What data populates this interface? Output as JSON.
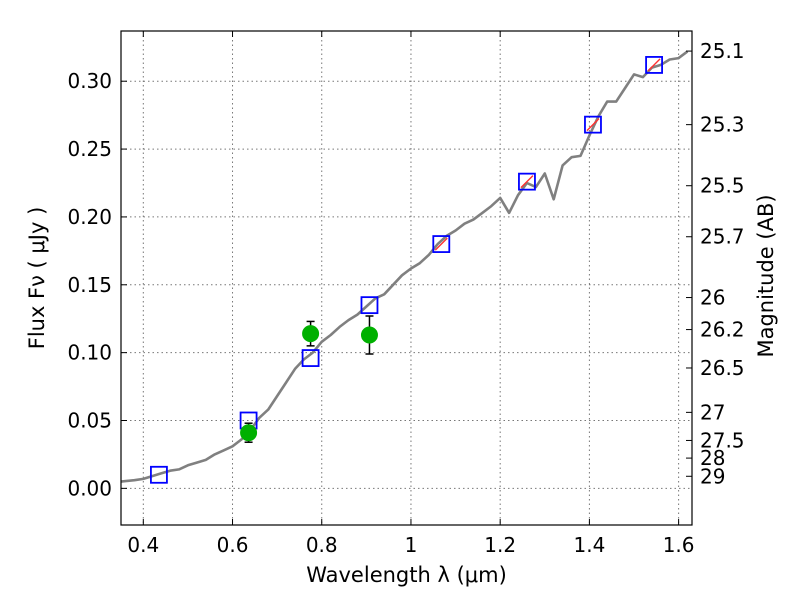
{
  "chart_data": {
    "type": "scatter",
    "title": "",
    "xlabel": "Wavelength  λ (μm)",
    "ylabel": "Flux  Fν ( μJy )",
    "y2label": "Magnitude (AB)",
    "xlim": [
      0.35,
      1.63
    ],
    "ylim": [
      -0.027,
      0.337
    ],
    "grid": true,
    "x_ticks": [
      0.4,
      0.6,
      0.8,
      1.0,
      1.2,
      1.4,
      1.6
    ],
    "x_tick_labels": [
      "0.4",
      "0.6",
      "0.8",
      "1",
      "1.2",
      "1.4",
      "1.6"
    ],
    "y_ticks": [
      0.0,
      0.05,
      0.1,
      0.15,
      0.2,
      0.25,
      0.3
    ],
    "y_tick_labels": [
      "0.00",
      "0.05",
      "0.10",
      "0.15",
      "0.20",
      "0.25",
      "0.30"
    ],
    "y2_ticks": [
      {
        "label": "25.1",
        "flux": 0.3222
      },
      {
        "label": "25.3",
        "flux": 0.268
      },
      {
        "label": "25.5",
        "flux": 0.223
      },
      {
        "label": "25.7",
        "flux": 0.1854
      },
      {
        "label": "26",
        "flux": 0.1406
      },
      {
        "label": "26.2",
        "flux": 0.117
      },
      {
        "label": "26.5",
        "flux": 0.0887
      },
      {
        "label": "27",
        "flux": 0.056
      },
      {
        "label": "27.5",
        "flux": 0.0353
      },
      {
        "label": "28",
        "flux": 0.0223
      },
      {
        "label": "29",
        "flux": 0.0089
      }
    ],
    "series": [
      {
        "kind": "line",
        "color": "#808080",
        "x": [
          0.35,
          0.38,
          0.4,
          0.42,
          0.44,
          0.46,
          0.48,
          0.5,
          0.52,
          0.54,
          0.56,
          0.58,
          0.6,
          0.62,
          0.64,
          0.66,
          0.68,
          0.7,
          0.72,
          0.74,
          0.76,
          0.78,
          0.8,
          0.82,
          0.84,
          0.86,
          0.88,
          0.9,
          0.92,
          0.94,
          0.96,
          0.98,
          1.0,
          1.02,
          1.04,
          1.06,
          1.08,
          1.1,
          1.12,
          1.14,
          1.16,
          1.18,
          1.2,
          1.22,
          1.24,
          1.26,
          1.28,
          1.3,
          1.32,
          1.34,
          1.36,
          1.38,
          1.4,
          1.42,
          1.44,
          1.46,
          1.48,
          1.5,
          1.52,
          1.54,
          1.56,
          1.58,
          1.6,
          1.62
        ],
        "y": [
          0.005,
          0.006,
          0.007,
          0.009,
          0.011,
          0.013,
          0.014,
          0.017,
          0.019,
          0.021,
          0.025,
          0.028,
          0.031,
          0.036,
          0.043,
          0.052,
          0.058,
          0.068,
          0.078,
          0.088,
          0.095,
          0.1,
          0.108,
          0.113,
          0.119,
          0.124,
          0.128,
          0.134,
          0.14,
          0.143,
          0.15,
          0.157,
          0.162,
          0.166,
          0.172,
          0.18,
          0.186,
          0.19,
          0.195,
          0.198,
          0.203,
          0.208,
          0.214,
          0.203,
          0.216,
          0.225,
          0.222,
          0.232,
          0.213,
          0.238,
          0.244,
          0.245,
          0.26,
          0.274,
          0.285,
          0.285,
          0.295,
          0.305,
          0.303,
          0.31,
          0.312,
          0.316,
          0.317,
          0.322
        ]
      },
      {
        "kind": "open-square",
        "color": "#0000ff",
        "x": [
          0.435,
          0.636,
          0.775,
          0.907,
          1.068,
          1.26,
          1.408,
          1.545
        ],
        "y": [
          0.01,
          0.05,
          0.096,
          0.135,
          0.18,
          0.226,
          0.268,
          0.312
        ]
      },
      {
        "kind": "red-tick",
        "color": "#ff3030",
        "x": [
          1.068,
          1.26,
          1.408,
          1.545
        ],
        "y": [
          0.18,
          0.226,
          0.268,
          0.312
        ]
      },
      {
        "kind": "filled-circle",
        "color": "#00b000",
        "x": [
          0.636,
          0.775,
          0.907
        ],
        "y": [
          0.041,
          0.114,
          0.113
        ],
        "yerr": [
          0.007,
          0.009,
          0.014
        ]
      }
    ]
  }
}
